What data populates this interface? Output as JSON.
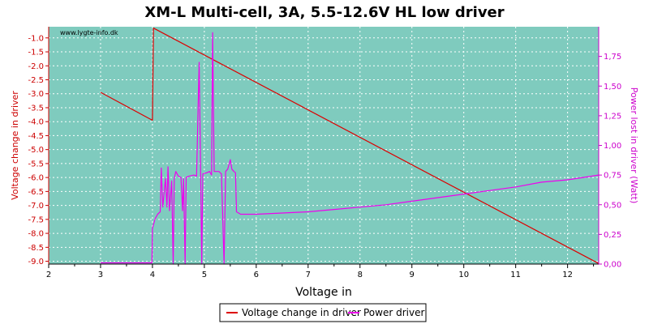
{
  "chart_data": {
    "type": "line",
    "title": "XM-L Multi-cell, 3A, 5.5-12.6V HL low driver",
    "watermark": "www.lygte-info.dk",
    "xlabel": "Voltage in",
    "ylabel_left": "Voltage change in driver",
    "ylabel_right": "Power lost in driver (Watt)",
    "xlim": [
      2,
      12.6
    ],
    "ylim_left": [
      -9.1,
      -0.6
    ],
    "ylim_right": [
      0,
      2.0
    ],
    "x_ticks": [
      "2",
      "3",
      "4",
      "5",
      "6",
      "7",
      "8",
      "9",
      "10",
      "11",
      "12"
    ],
    "y_left_ticks": [
      "-1.0",
      "-1.5",
      "-2.0",
      "-2.5",
      "-3.0",
      "-3.5",
      "-4.0",
      "-4.5",
      "-5.0",
      "-5.5",
      "-6.0",
      "-6.5",
      "-7.0",
      "-7.5",
      "-8.0",
      "-8.5",
      "-9.0"
    ],
    "y_right_ticks": [
      "0,00",
      "0,25",
      "0,50",
      "0,75",
      "1,00",
      "1,25",
      "1,50",
      "1,75"
    ],
    "grid": true,
    "legend_position": "bottom-center",
    "colors": {
      "plot_bg": "#7fcbbe",
      "grid": "#ffffff",
      "voltage_series": "#dd0000",
      "power_series": "#ee00ee",
      "left_axis": "#cc0000",
      "right_axis": "#cc00cc"
    },
    "series": [
      {
        "name": "Voltage change in driver",
        "axis": "left",
        "points": [
          [
            3.0,
            -2.95
          ],
          [
            4.0,
            -3.95
          ],
          [
            4.02,
            -0.65
          ],
          [
            12.6,
            -9.08
          ]
        ]
      },
      {
        "name": "Power driver",
        "axis": "right",
        "points": [
          [
            3.0,
            0.01
          ],
          [
            3.3,
            0.01
          ],
          [
            3.6,
            0.01
          ],
          [
            3.9,
            0.01
          ],
          [
            3.99,
            0.01
          ],
          [
            4.0,
            0.3
          ],
          [
            4.05,
            0.38
          ],
          [
            4.1,
            0.42
          ],
          [
            4.15,
            0.44
          ],
          [
            4.17,
            0.81
          ],
          [
            4.2,
            0.48
          ],
          [
            4.25,
            0.72
          ],
          [
            4.28,
            0.48
          ],
          [
            4.3,
            0.82
          ],
          [
            4.33,
            0.45
          ],
          [
            4.37,
            0.7
          ],
          [
            4.4,
            0.0
          ],
          [
            4.42,
            0.72
          ],
          [
            4.45,
            0.78
          ],
          [
            4.5,
            0.74
          ],
          [
            4.55,
            0.73
          ],
          [
            4.58,
            0.45
          ],
          [
            4.6,
            0.72
          ],
          [
            4.63,
            0.0
          ],
          [
            4.65,
            0.73
          ],
          [
            4.7,
            0.74
          ],
          [
            4.8,
            0.75
          ],
          [
            4.85,
            0.74
          ],
          [
            4.9,
            1.7
          ],
          [
            4.93,
            0.73
          ],
          [
            4.95,
            0.0
          ],
          [
            4.97,
            0.76
          ],
          [
            5.05,
            0.77
          ],
          [
            5.1,
            0.78
          ],
          [
            5.14,
            0.75
          ],
          [
            5.16,
            1.95
          ],
          [
            5.19,
            0.78
          ],
          [
            5.22,
            0.78
          ],
          [
            5.28,
            0.78
          ],
          [
            5.33,
            0.76
          ],
          [
            5.38,
            0.0
          ],
          [
            5.41,
            0.78
          ],
          [
            5.45,
            0.8
          ],
          [
            5.5,
            0.88
          ],
          [
            5.53,
            0.8
          ],
          [
            5.57,
            0.78
          ],
          [
            5.6,
            0.77
          ],
          [
            5.62,
            0.44
          ],
          [
            5.7,
            0.42
          ],
          [
            5.8,
            0.42
          ],
          [
            6.0,
            0.42
          ],
          [
            6.5,
            0.43
          ],
          [
            7.0,
            0.44
          ],
          [
            7.5,
            0.46
          ],
          [
            8.0,
            0.48
          ],
          [
            8.5,
            0.5
          ],
          [
            9.0,
            0.53
          ],
          [
            9.5,
            0.56
          ],
          [
            10.0,
            0.59
          ],
          [
            10.5,
            0.62
          ],
          [
            11.0,
            0.65
          ],
          [
            11.5,
            0.69
          ],
          [
            12.0,
            0.71
          ],
          [
            12.3,
            0.73
          ],
          [
            12.6,
            0.75
          ]
        ]
      }
    ]
  }
}
